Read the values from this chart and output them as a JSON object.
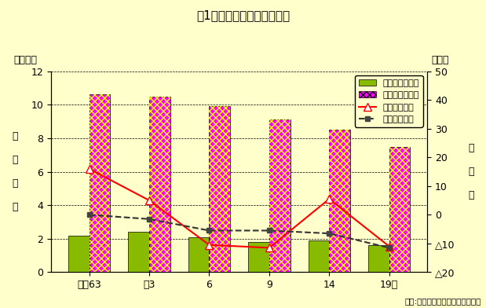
{
  "title": "図1１　商業事務所数の推移",
  "categories": [
    "昭和63",
    "平3",
    "6",
    "9",
    "14",
    "19年"
  ],
  "wholesale_stores": [
    2.2,
    2.4,
    2.1,
    1.8,
    1.9,
    1.6
  ],
  "retail_stores": [
    10.6,
    10.5,
    9.9,
    9.1,
    8.5,
    7.5
  ],
  "wholesale_rate": [
    16.0,
    5.0,
    -10.5,
    -11.5,
    5.5,
    -11.0
  ],
  "retail_rate": [
    0.0,
    -1.5,
    -5.5,
    -5.5,
    -6.5,
    -11.5
  ],
  "left_unit": "（千店）",
  "right_unit": "（％）",
  "left_ylabel": "事\n\n業\n\n所\n\n数",
  "right_ylabel": "増\n\n減\n\n率",
  "ylim_left": [
    0,
    12
  ],
  "ylim_right": [
    -20,
    50
  ],
  "yticks_left": [
    0,
    2,
    4,
    6,
    8,
    10,
    12
  ],
  "yticks_right": [
    -20,
    -10,
    0,
    10,
    20,
    30,
    40,
    50
  ],
  "background_color": "#ffffcc",
  "bar_width": 0.35,
  "wholesale_bar_color": "#88bb00",
  "retail_bar_facecolor": "#ff00ff",
  "retail_bar_hatchcolor": "#ffff00",
  "wholesale_line_color": "red",
  "retail_line_color": "#333333",
  "legend_labels": [
    "卒売業事業所数",
    "小売業事業所数",
    "卒売業増減率",
    "小売業増減率"
  ],
  "source_text": "資料:経済産業省「商業統計調査」",
  "font_size": 9
}
